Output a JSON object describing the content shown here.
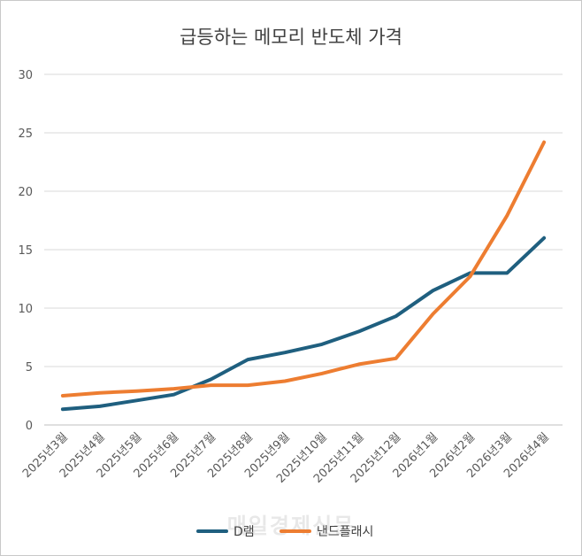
{
  "chart_data": {
    "type": "line",
    "title": "급등하는 메모리 반도체 가격",
    "categories": [
      "2025년3월",
      "2025년4월",
      "2025년5월",
      "2025년6월",
      "2025년7월",
      "2025년8월",
      "2025년9월",
      "2025년10월",
      "2025년11월",
      "2025년12월",
      "2026년1월",
      "2026년2월",
      "2026년3월",
      "2026년4월"
    ],
    "series": [
      {
        "name": "D램",
        "color": "#1f5f7f",
        "values": [
          1.35,
          1.6,
          2.1,
          2.6,
          3.9,
          5.6,
          6.2,
          6.9,
          8.0,
          9.3,
          11.5,
          13.0,
          13.0,
          16.0
        ]
      },
      {
        "name": "낸드플래시",
        "color": "#ed7d31",
        "values": [
          2.5,
          2.75,
          2.9,
          3.1,
          3.4,
          3.4,
          3.75,
          4.4,
          5.2,
          5.7,
          9.5,
          12.7,
          17.9,
          24.2
        ]
      }
    ],
    "ylim": [
      0,
      30
    ],
    "yticks": [
      0,
      5,
      10,
      15,
      20,
      25,
      30
    ],
    "grid": true,
    "legend": "bottom"
  },
  "watermark": "매일경제신문"
}
